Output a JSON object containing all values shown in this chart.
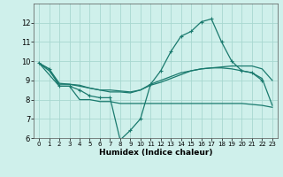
{
  "bg_color": "#cff0eb",
  "grid_color": "#a8d8d0",
  "line_color": "#1a7a6e",
  "xlabel": "Humidex (Indice chaleur)",
  "xlim": [
    -0.5,
    23.5
  ],
  "ylim": [
    6,
    13
  ],
  "yticks": [
    6,
    7,
    8,
    9,
    10,
    11,
    12
  ],
  "xticks": [
    0,
    1,
    2,
    3,
    4,
    5,
    6,
    7,
    8,
    9,
    10,
    11,
    12,
    13,
    14,
    15,
    16,
    17,
    18,
    19,
    20,
    21,
    22,
    23
  ],
  "series": [
    {
      "x": [
        0,
        1,
        2,
        3,
        4,
        5,
        6,
        7,
        8,
        9,
        10,
        11,
        12,
        13,
        14,
        15,
        16,
        17,
        18,
        19,
        20,
        21,
        22
      ],
      "y": [
        9.9,
        9.6,
        8.7,
        8.7,
        8.5,
        8.2,
        8.1,
        8.1,
        5.9,
        6.4,
        7.0,
        8.8,
        9.5,
        10.5,
        11.3,
        11.55,
        12.05,
        12.2,
        11.0,
        10.0,
        9.5,
        9.4,
        9.0
      ],
      "marker": "+"
    },
    {
      "x": [
        0,
        1,
        2,
        3,
        4,
        5,
        6,
        7,
        8,
        9,
        10,
        11,
        12,
        13,
        14,
        15,
        16,
        17,
        18,
        19,
        20,
        21,
        22,
        23
      ],
      "y": [
        9.9,
        9.5,
        8.8,
        8.8,
        8.75,
        8.6,
        8.5,
        8.5,
        8.45,
        8.4,
        8.5,
        8.75,
        8.9,
        9.1,
        9.3,
        9.5,
        9.6,
        9.65,
        9.7,
        9.75,
        9.75,
        9.75,
        9.6,
        9.0
      ],
      "marker": null
    },
    {
      "x": [
        0,
        1,
        2,
        3,
        4,
        5,
        6,
        7,
        8,
        9,
        10,
        11,
        12,
        13,
        14,
        15,
        16,
        17,
        18,
        19,
        20,
        21,
        22,
        23
      ],
      "y": [
        9.9,
        9.6,
        8.85,
        8.8,
        8.7,
        8.6,
        8.5,
        8.4,
        8.4,
        8.35,
        8.5,
        8.8,
        9.0,
        9.2,
        9.4,
        9.5,
        9.6,
        9.65,
        9.65,
        9.6,
        9.5,
        9.4,
        9.1,
        7.7
      ],
      "marker": null
    },
    {
      "x": [
        0,
        2,
        3,
        4,
        5,
        6,
        7,
        8,
        9,
        10,
        11,
        12,
        13,
        14,
        15,
        16,
        17,
        18,
        19,
        20,
        21,
        22,
        23
      ],
      "y": [
        9.9,
        8.7,
        8.7,
        8.0,
        8.0,
        7.9,
        7.9,
        7.8,
        7.8,
        7.8,
        7.8,
        7.8,
        7.8,
        7.8,
        7.8,
        7.8,
        7.8,
        7.8,
        7.8,
        7.8,
        7.75,
        7.7,
        7.6
      ],
      "marker": null
    }
  ]
}
